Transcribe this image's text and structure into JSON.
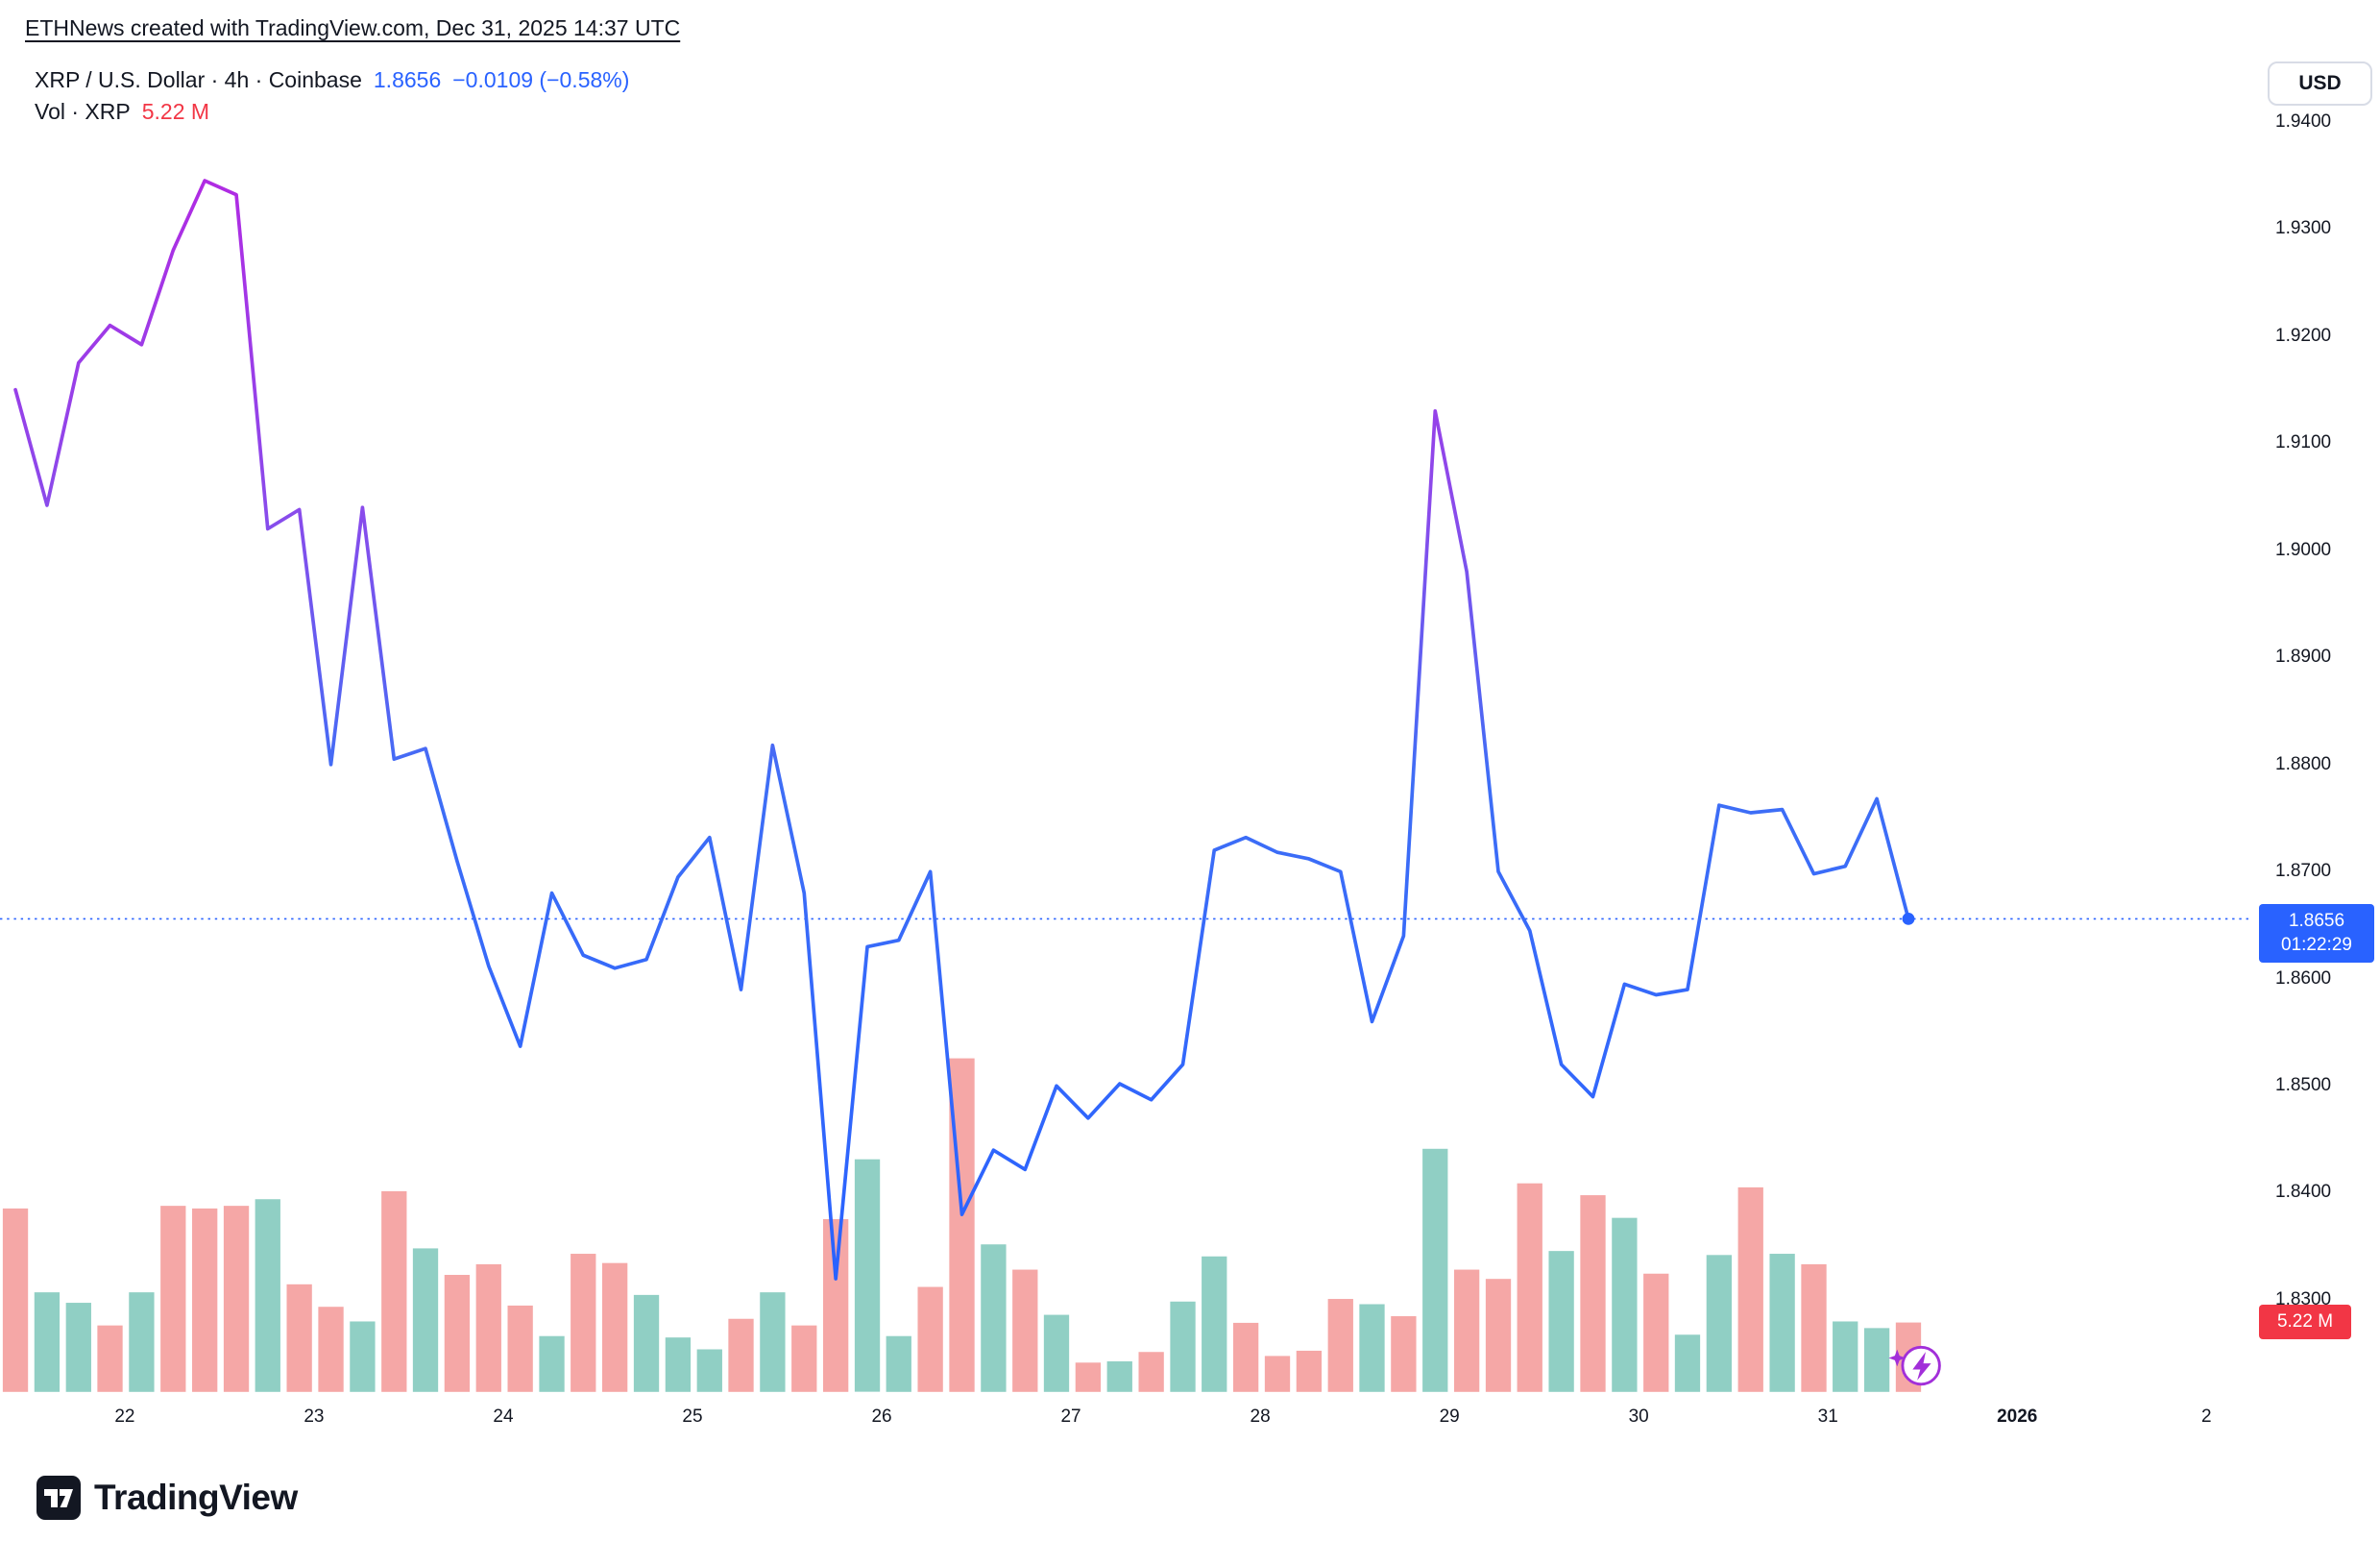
{
  "header": {
    "attribution": "ETHNews created with TradingView.com, Dec 31, 2025 14:37 UTC"
  },
  "legend": {
    "symbol_title": "XRP / U.S. Dollar · 4h · Coinbase",
    "price": "1.8656",
    "change": "−0.0109 (−0.58%)",
    "volume_label": "Vol · XRP",
    "volume_value": "5.22 M"
  },
  "price_axis": {
    "currency": "USD",
    "labels": [
      "1.9400",
      "1.9300",
      "1.9200",
      "1.9100",
      "1.9000",
      "1.8900",
      "1.8800",
      "1.8700",
      "1.8600",
      "1.8500",
      "1.8400",
      "1.8300"
    ],
    "current_badge": {
      "price": "1.8656",
      "countdown": "01:22:29"
    },
    "volume_badge": "5.22 M"
  },
  "time_axis": {
    "labels": [
      "22",
      "23",
      "24",
      "25",
      "26",
      "27",
      "28",
      "29",
      "30",
      "31",
      "2026",
      "2"
    ],
    "bold_label": "2026"
  },
  "footer": {
    "brand": "TradingView"
  },
  "colors": {
    "accent_blue": "#2962FF",
    "down_red": "#F23645",
    "vol_up": "#90CFC4",
    "vol_down": "#F5A7A6",
    "text": "#131722",
    "line_gradient_top": "#B02BE3",
    "line_gradient_mid": "#8A4BEB",
    "line_gradient_bottom": "#2962FF"
  },
  "chart_data": {
    "type": "line",
    "title": "XRP / U.S. Dollar · 4h · Coinbase",
    "symbol": "XRP/USD",
    "interval": "4h",
    "exchange": "Coinbase",
    "last_price": 1.8656,
    "change": -0.0109,
    "change_pct": -0.58,
    "ylim": [
      1.825,
      1.945
    ],
    "grid": false,
    "x_day_labels": [
      "22",
      "23",
      "24",
      "25",
      "26",
      "27",
      "28",
      "29",
      "30",
      "31",
      "2026",
      "2"
    ],
    "prices": [
      1.915,
      1.9042,
      1.9175,
      1.921,
      1.9192,
      1.928,
      1.9345,
      1.9332,
      1.902,
      1.9038,
      1.88,
      1.904,
      1.8805,
      1.8815,
      1.871,
      1.8612,
      1.8537,
      1.868,
      1.8622,
      1.861,
      1.8618,
      1.8695,
      1.8732,
      1.859,
      1.8818,
      1.868,
      1.832,
      1.863,
      1.8636,
      1.87,
      1.838,
      1.844,
      1.8422,
      1.85,
      1.847,
      1.8502,
      1.8487,
      1.852,
      1.872,
      1.8732,
      1.8718,
      1.8712,
      1.87,
      1.856,
      1.864,
      1.913,
      1.898,
      1.87,
      1.8645,
      1.852,
      1.849,
      1.8595,
      1.8585,
      1.859,
      1.8762,
      1.8755,
      1.8758,
      1.8698,
      1.8705,
      1.8768,
      1.8656
    ],
    "volume": {
      "unit": "M XRP",
      "last_value": 5.22,
      "values": [
        13.8,
        7.5,
        6.7,
        5.0,
        7.5,
        14.0,
        13.8,
        14.0,
        14.5,
        8.1,
        6.4,
        5.3,
        15.1,
        10.8,
        8.8,
        9.6,
        6.5,
        4.2,
        10.4,
        9.7,
        7.3,
        4.1,
        3.2,
        5.5,
        7.5,
        5.0,
        13.0,
        17.5,
        4.2,
        7.9,
        25.1,
        11.1,
        9.2,
        5.8,
        2.2,
        2.3,
        3.0,
        6.8,
        10.2,
        5.2,
        2.7,
        3.1,
        7.0,
        6.6,
        5.7,
        18.3,
        9.2,
        8.5,
        15.7,
        10.6,
        14.8,
        13.1,
        8.9,
        4.3,
        10.3,
        15.4,
        10.4,
        9.6,
        5.3,
        4.8,
        5.22
      ],
      "colors": [
        "r",
        "g",
        "g",
        "r",
        "g",
        "r",
        "r",
        "r",
        "g",
        "r",
        "r",
        "g",
        "r",
        "g",
        "r",
        "r",
        "r",
        "g",
        "r",
        "r",
        "g",
        "g",
        "g",
        "r",
        "g",
        "r",
        "r",
        "g",
        "g",
        "r",
        "r",
        "g",
        "r",
        "g",
        "r",
        "g",
        "r",
        "g",
        "g",
        "r",
        "r",
        "r",
        "r",
        "g",
        "r",
        "g",
        "r",
        "r",
        "r",
        "g",
        "r",
        "g",
        "r",
        "g",
        "g",
        "r",
        "g",
        "r",
        "g",
        "g",
        "r"
      ]
    }
  }
}
